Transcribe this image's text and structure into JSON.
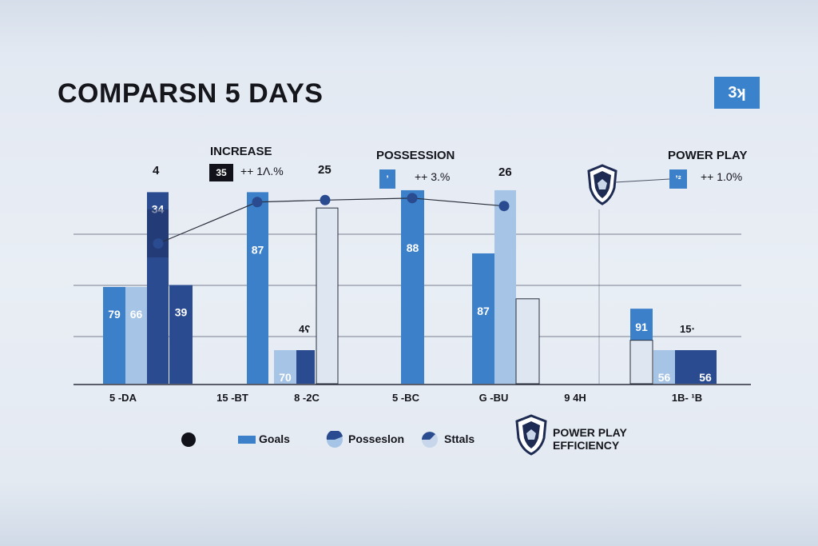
{
  "header": {
    "title": "COMPARSN 5 DAYS",
    "badge": "3ʞ"
  },
  "annotations": [
    {
      "title": "INCREASE",
      "chip": "35",
      "text": "++ 1Λ.%"
    },
    {
      "title": "POSSESSION",
      "chip": "’",
      "text": "++ 3.%"
    },
    {
      "title": "POWER PLAY",
      "chip": "’²",
      "text": "++ 1.0%"
    }
  ],
  "top_labels": [
    "4",
    "25",
    "26",
    "4ʕ",
    "15‧"
  ],
  "colors": {
    "blue": "#3b80c9",
    "light": "#a5c4e6",
    "navy": "#2a4b90",
    "dark": "#1e3262",
    "pale": "#dde6f1",
    "line": "#2a2f3c",
    "grid": "#4b5366",
    "text": "#15151c"
  },
  "legend": [
    {
      "icon": "dot-icon",
      "label": ""
    },
    {
      "icon": "goals-swatch-icon",
      "label": "Goals"
    },
    {
      "icon": "possession-swatch-icon",
      "label": "Posseslon"
    },
    {
      "icon": "shots-swatch-icon",
      "label": "Sttals"
    },
    {
      "icon": "shield-icon",
      "label": "POWER PLAY EFFICIENCY"
    }
  ],
  "chart_data": {
    "type": "bar",
    "title": "COMPARSN 5 DAYS",
    "categories": [
      "5 -DA",
      "15 -BT",
      "8 -2C",
      "5 -BC",
      "G -BU",
      "9 4H",
      "1B- ¹B"
    ],
    "ylim": [
      0,
      100
    ],
    "grid": "horizontal",
    "legend_position": "bottom",
    "bars": [
      {
        "category": "5 -DA",
        "value": 49,
        "label": "79",
        "color": "blue"
      },
      {
        "category": "5 -DA",
        "value": 49,
        "label": "66",
        "color": "light"
      },
      {
        "category": "5 -DA",
        "value": 97,
        "label": "34",
        "color": "navy",
        "label_at": "top"
      },
      {
        "category": "5 -DA",
        "value": 50,
        "label": "39",
        "color": "navy"
      },
      {
        "category": "15 -BT",
        "value": 97,
        "label": "87",
        "color": "blue",
        "label_at": "upper"
      },
      {
        "category": "8 -2C",
        "value": 17,
        "label": "70",
        "color": "light"
      },
      {
        "category": "8 -2C",
        "value": 17,
        "label": "",
        "color": "navy"
      },
      {
        "category": "8 -2C",
        "value": 89,
        "label": "",
        "color": "pale"
      },
      {
        "category": "5 -BC",
        "value": 98,
        "label": "88",
        "color": "blue",
        "label_at": "upper"
      },
      {
        "category": "G -BU",
        "value": 66,
        "label": "87",
        "color": "blue",
        "label_at": "upper"
      },
      {
        "category": "G -BU",
        "value": 98,
        "label": "",
        "color": "light"
      },
      {
        "category": "G -BU",
        "value": 43,
        "label": "",
        "color": "pale"
      },
      {
        "category": "1B- ¹B",
        "value": 38,
        "label": "91",
        "color": "blue",
        "label_at": "upper"
      },
      {
        "category": "1B- ¹B",
        "value": 22,
        "label": "",
        "color": "pale"
      },
      {
        "category": "1B- ¹B",
        "value": 17,
        "label": "56",
        "color": "light"
      },
      {
        "category": "1B- ¹B",
        "value": 17,
        "label": "",
        "color": "navy"
      },
      {
        "category": "1B- ¹B",
        "value": 17,
        "label": "56",
        "color": "navy"
      }
    ],
    "line_series": {
      "x": [
        "5 -DA",
        "15 -BT",
        "8 -2C",
        "5 -BC",
        "G -BU"
      ],
      "values": [
        71,
        92,
        93,
        94,
        90
      ]
    }
  }
}
